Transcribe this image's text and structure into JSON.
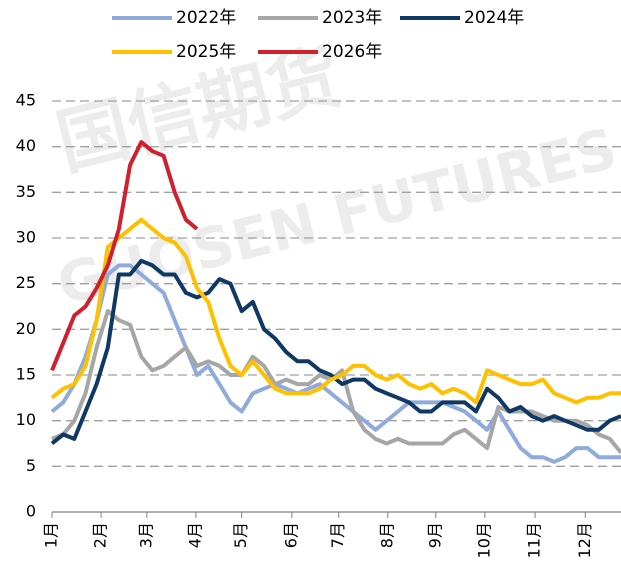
{
  "chart_data": {
    "type": "line",
    "watermark": [
      "国信期货",
      "GUOSEN FUTURES"
    ],
    "x": [
      0,
      1,
      2,
      3,
      4,
      5,
      6,
      7,
      8,
      9,
      10,
      11,
      12,
      13,
      14,
      15,
      16,
      17,
      18,
      19,
      20,
      21,
      22,
      23,
      24,
      25,
      26,
      27,
      28,
      29,
      30,
      31,
      32,
      33,
      34,
      35,
      36,
      37,
      38,
      39,
      40,
      41,
      42,
      43,
      44,
      45,
      46,
      47,
      48,
      49,
      50,
      51
    ],
    "xlim": [
      0,
      51
    ],
    "xticks": [
      {
        "value": 0,
        "label": "1月"
      },
      {
        "value": 4.4,
        "label": "2月"
      },
      {
        "value": 8.5,
        "label": "3月"
      },
      {
        "value": 12.9,
        "label": "4月"
      },
      {
        "value": 17.0,
        "label": "5月"
      },
      {
        "value": 21.5,
        "label": "6月"
      },
      {
        "value": 25.7,
        "label": "7月"
      },
      {
        "value": 30.1,
        "label": "8月"
      },
      {
        "value": 34.4,
        "label": "9月"
      },
      {
        "value": 38.8,
        "label": "10月"
      },
      {
        "value": 43.3,
        "label": "11月"
      },
      {
        "value": 47.8,
        "label": "12月"
      }
    ],
    "ylim": [
      0,
      45
    ],
    "yticks": [
      0,
      5,
      10,
      15,
      20,
      25,
      30,
      35,
      40,
      45
    ],
    "grid": true,
    "legend": "top",
    "series": [
      {
        "name": "2022年",
        "color": "#8faadc",
        "values": [
          11,
          12,
          14,
          17,
          21,
          26,
          27,
          27,
          26,
          25,
          24,
          21,
          18,
          15,
          16,
          14,
          12,
          11,
          13,
          13.5,
          14,
          13.5,
          13,
          13.5,
          14,
          13,
          12,
          11,
          10,
          9,
          10,
          11,
          12,
          12,
          12,
          12,
          11.5,
          11,
          10,
          9,
          11,
          9,
          7,
          6,
          6,
          5.5,
          6,
          7,
          7,
          6,
          6,
          6
        ]
      },
      {
        "name": "2023年",
        "color": "#a6a6a6",
        "values": [
          8,
          8.5,
          10,
          13,
          18,
          22,
          21,
          20.5,
          17,
          15.5,
          16,
          17,
          18,
          16,
          16.5,
          16,
          15,
          15,
          17,
          16,
          14,
          14.5,
          14,
          14,
          15,
          14.5,
          15.5,
          11,
          9,
          8,
          7.5,
          8,
          7.5,
          7.5,
          7.5,
          7.5,
          8.5,
          9,
          8,
          7,
          11.5,
          11,
          11,
          11,
          10.5,
          10,
          10,
          10,
          9.5,
          8.5,
          8,
          6.5
        ]
      },
      {
        "name": "2024年",
        "color": "#0f3864",
        "values": [
          7.5,
          8.5,
          8,
          11,
          14,
          18,
          26,
          26,
          27.5,
          27,
          26,
          26,
          24,
          23.5,
          24,
          25.5,
          25,
          22,
          23,
          20,
          19,
          17.5,
          16.5,
          16.5,
          15.5,
          15,
          14,
          14.5,
          14.5,
          13.5,
          13,
          12.5,
          12,
          11,
          11,
          12,
          12,
          12,
          11,
          13.5,
          12.5,
          11,
          11.5,
          10.5,
          10,
          10.5,
          10,
          9.5,
          9,
          9,
          10,
          10.5
        ]
      },
      {
        "name": "2025年",
        "color": "#ffc000",
        "values": [
          12.5,
          13.5,
          14,
          16,
          21,
          29,
          30,
          31,
          32,
          31,
          30,
          29.5,
          28,
          24.5,
          23,
          19,
          16,
          15,
          16.5,
          15,
          13.5,
          13,
          13,
          13,
          13.5,
          14.5,
          15,
          16,
          16,
          15,
          14.5,
          15,
          14,
          13.5,
          14,
          13,
          13.5,
          13,
          12,
          15.5,
          15,
          14.5,
          14,
          14,
          14.5,
          13,
          12.5,
          12,
          12.5,
          12.5,
          13,
          13
        ]
      },
      {
        "name": "2026年",
        "color": "#d0202e",
        "values": [
          15.5,
          18.5,
          21.5,
          22.5,
          24.5,
          27,
          31,
          38,
          40.5,
          39.5,
          39,
          35,
          32,
          31,
          null,
          null,
          null,
          null,
          null,
          null,
          null,
          null,
          null,
          null,
          null,
          null,
          null,
          null,
          null,
          null,
          null,
          null,
          null,
          null,
          null,
          null,
          null,
          null,
          null,
          null,
          null,
          null,
          null,
          null,
          null,
          null,
          null,
          null,
          null,
          null,
          null,
          null
        ]
      }
    ]
  }
}
